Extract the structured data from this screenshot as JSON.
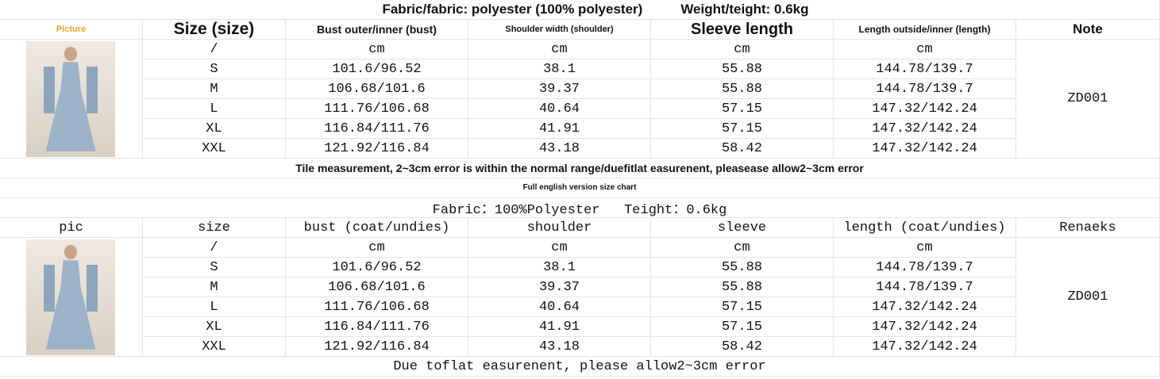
{
  "table1": {
    "title_fabric": "Fabric/fabric: polyester (100% polyester)",
    "title_weight": "Weight/teight: 0.6kg",
    "header": [
      "Picture",
      "Size (size)",
      "Bust outer/inner (bust)",
      "Shoulder width (shoulder)",
      "Sleeve length",
      "Length outside/inner (length)",
      "Note"
    ],
    "rows": [
      [
        "/",
        "cm",
        "cm",
        "cm",
        "cm"
      ],
      [
        "S",
        "101.6/96.52",
        "38.1",
        "55.88",
        "144.78/139.7"
      ],
      [
        "M",
        "106.68/101.6",
        "39.37",
        "55.88",
        "144.78/139.7"
      ],
      [
        "L",
        "111.76/106.68",
        "40.64",
        "57.15",
        "147.32/142.24"
      ],
      [
        "XL",
        "116.84/111.76",
        "41.91",
        "57.15",
        "147.32/142.24"
      ],
      [
        "XXL",
        "121.92/116.84",
        "43.18",
        "58.42",
        "147.32/142.24"
      ]
    ],
    "note": "ZD001",
    "footnote": "Tile measurement, 2~3cm error is within the normal range/duefitlat easurenent, pleasease allow2~3cm error"
  },
  "subtitle": "Full english version size chart",
  "table2": {
    "title": "Fabric：100%Polyester   Teight：0.6kg",
    "header": [
      "pic",
      "size",
      "bust (coat/undies)",
      "shoulder",
      "sleeve",
      "length (coat/undies)",
      "Renaeks"
    ],
    "rows": [
      [
        "/",
        "cm",
        "cm",
        "cm",
        "cm"
      ],
      [
        "S",
        "101.6/96.52",
        "38.1",
        "55.88",
        "144.78/139.7"
      ],
      [
        "M",
        "106.68/101.6",
        "39.37",
        "55.88",
        "144.78/139.7"
      ],
      [
        "L",
        "111.76/106.68",
        "40.64",
        "57.15",
        "147.32/142.24"
      ],
      [
        "XL",
        "116.84/111.76",
        "41.91",
        "57.15",
        "147.32/142.24"
      ],
      [
        "XXL",
        "121.92/116.84",
        "43.18",
        "58.42",
        "147.32/142.24"
      ]
    ],
    "note": "ZD001",
    "footnote": "Due toflat easurenent, please allow2~3cm error"
  }
}
